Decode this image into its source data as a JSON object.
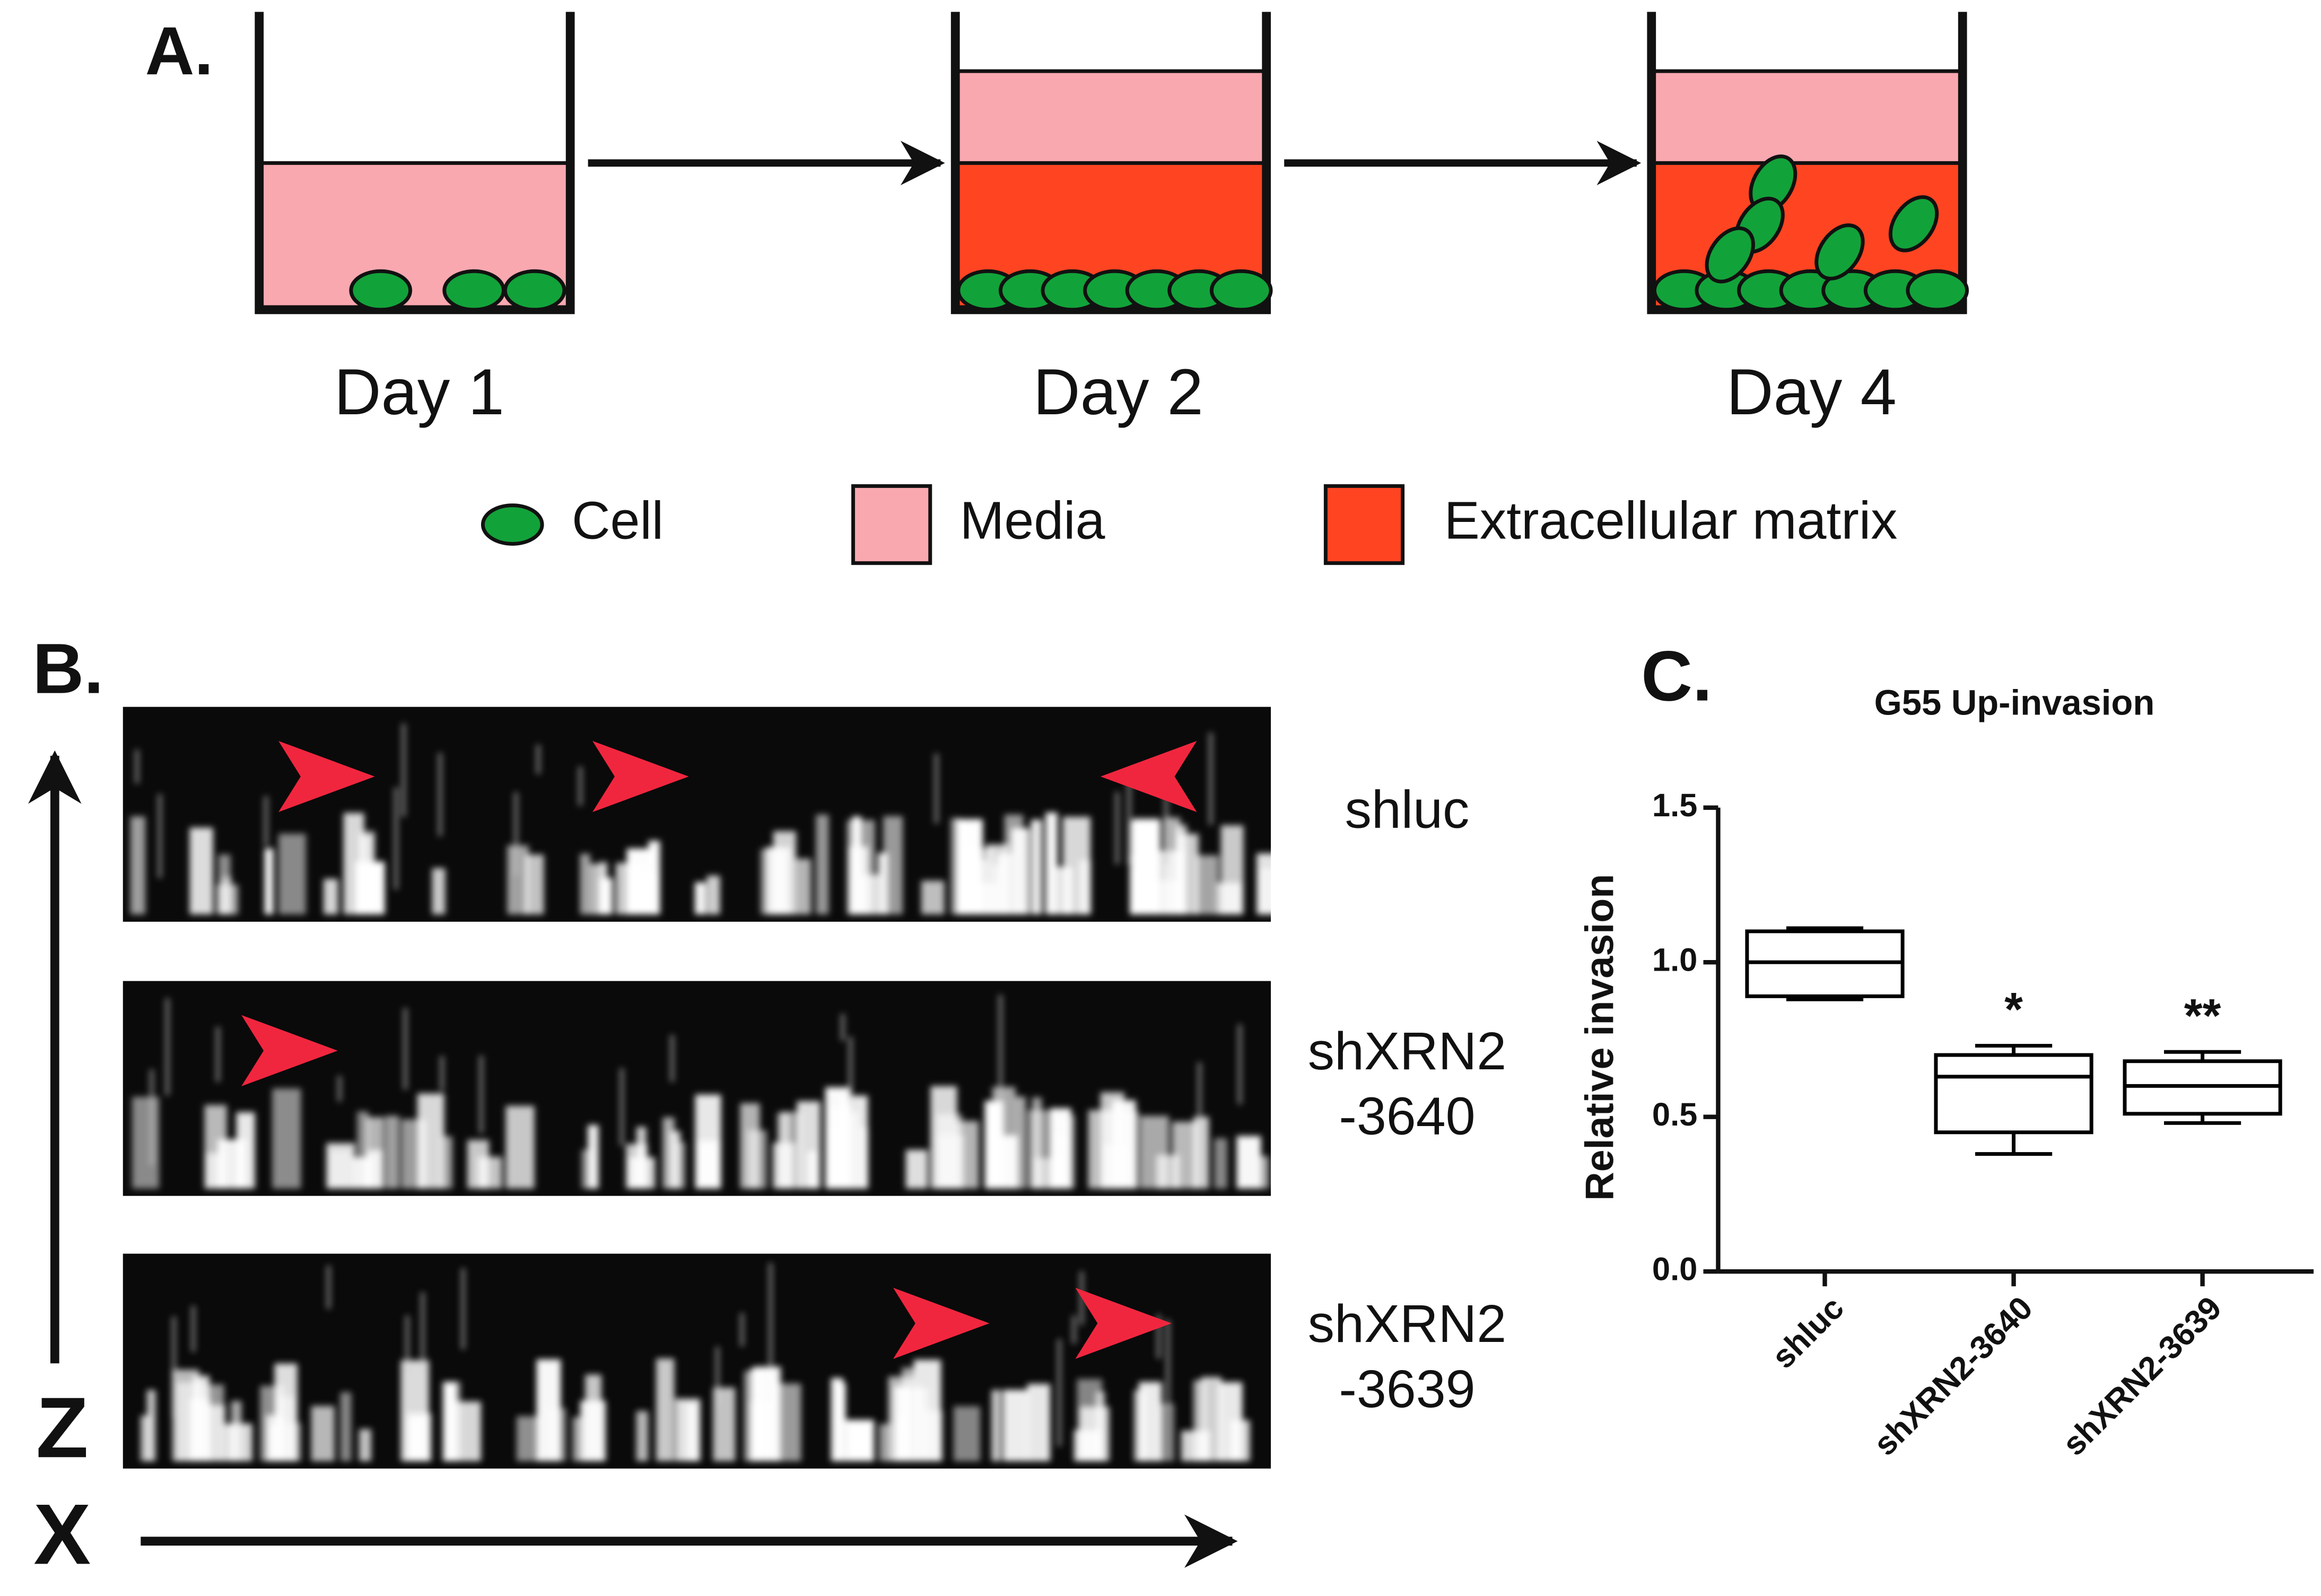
{
  "panel_a": {
    "label": "A.",
    "days": [
      "Day 1",
      "Day 2",
      "Day 4"
    ],
    "legend": [
      "Cell",
      "Media",
      "Extracellular matrix"
    ]
  },
  "panel_b": {
    "label": "B.",
    "rows": [
      [
        "shluc"
      ],
      [
        "shXRN2",
        "-3640"
      ],
      [
        "shXRN2",
        "-3639"
      ]
    ],
    "axes": [
      "Z",
      "X"
    ]
  },
  "chart_data": {
    "type": "box",
    "panel_label": "C.",
    "title": "G55 Up-invasion",
    "y_label": "Relative invasion",
    "categories": [
      "shluc",
      "shXRN2-3640",
      "shXRN2-3639"
    ],
    "boxes": [
      {
        "min": 0.88,
        "q1": 0.89,
        "median": 1.0,
        "q3": 1.1,
        "max": 1.11
      },
      {
        "min": 0.38,
        "q1": 0.45,
        "median": 0.63,
        "q3": 0.7,
        "max": 0.73
      },
      {
        "min": 0.48,
        "q1": 0.51,
        "median": 0.6,
        "q3": 0.68,
        "max": 0.71
      }
    ],
    "annotations": [
      {
        "category": "shXRN2-3640",
        "text": "*"
      },
      {
        "category": "shXRN2-3639",
        "text": "**"
      }
    ],
    "ylim": [
      0,
      1.5
    ],
    "yticks": [
      {
        "value": 0,
        "label": "0.0"
      },
      {
        "value": 0.5,
        "label": "0.5"
      },
      {
        "value": 1,
        "label": "1.0"
      },
      {
        "value": 1.5,
        "label": "1.5"
      }
    ],
    "color": "#000000"
  }
}
